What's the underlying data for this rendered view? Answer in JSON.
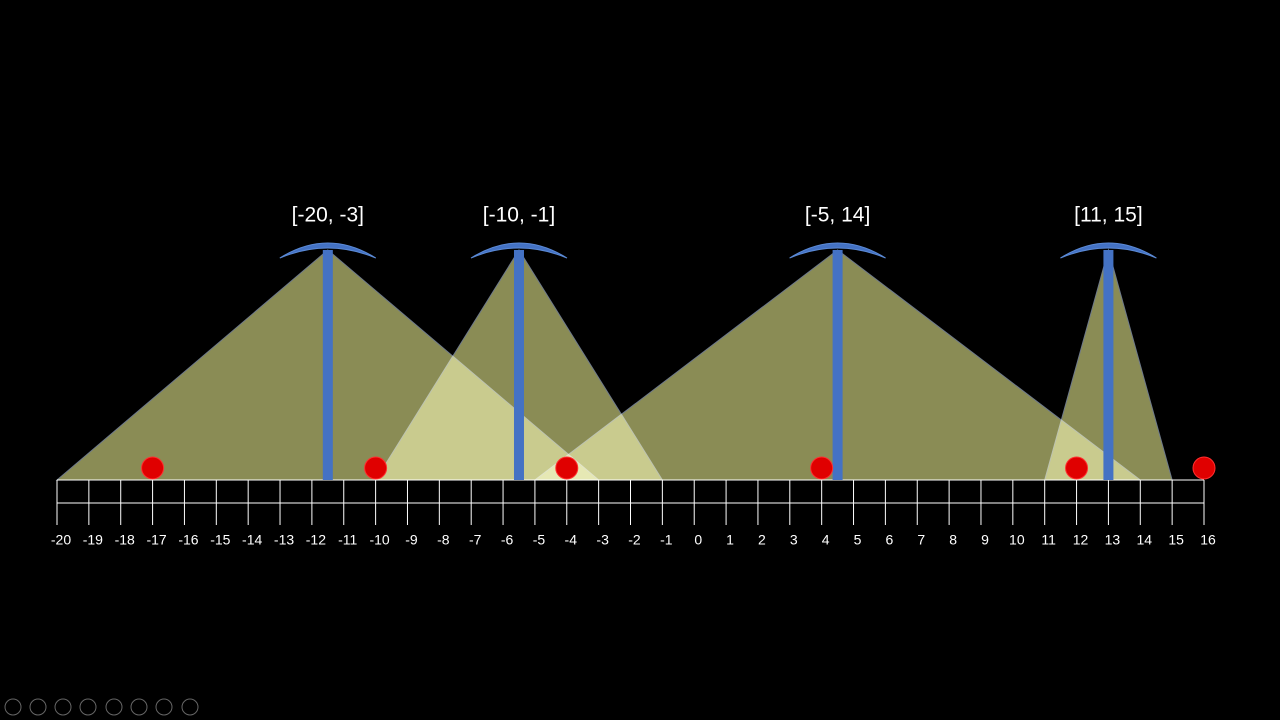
{
  "number_line": {
    "labels": [
      -20,
      -19,
      -18,
      -17,
      -16,
      -15,
      -14,
      -13,
      -12,
      -11,
      -10,
      -9,
      -8,
      -7,
      -6,
      -5,
      -4,
      -3,
      -2,
      -1,
      0,
      1,
      2,
      3,
      4,
      5,
      6,
      7,
      8,
      9,
      10,
      11,
      12,
      13,
      14,
      15,
      16
    ]
  },
  "lamps": [
    {
      "label": "[-20, -3]",
      "range": [
        -20,
        -3
      ]
    },
    {
      "label": "[-10, -1]",
      "range": [
        -10,
        -1
      ]
    },
    {
      "label": "[-5, 14]",
      "range": [
        -5,
        14
      ]
    },
    {
      "label": "[11, 15]",
      "range": [
        11,
        15
      ]
    }
  ],
  "points": [
    -17,
    -10,
    -4,
    4,
    12,
    16
  ]
}
